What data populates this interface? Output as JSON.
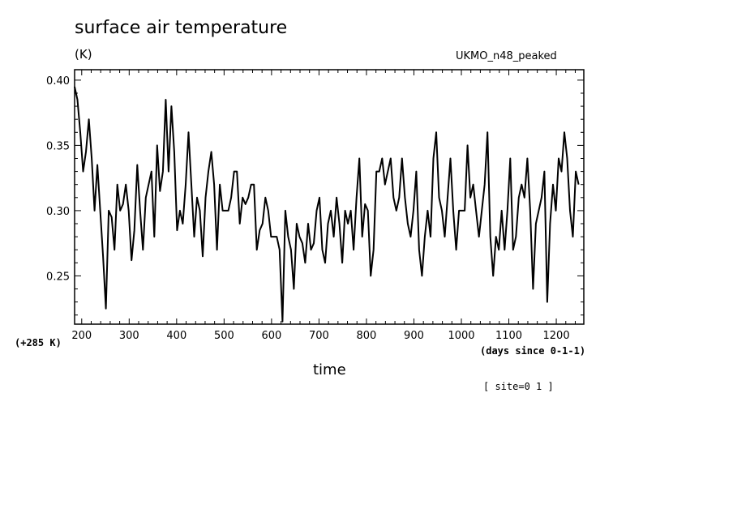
{
  "header": {
    "title": "surface air temperature",
    "units": "(K)",
    "model": "UKMO_n48_peaked"
  },
  "footer": {
    "offset_note": "(+285 K)",
    "x_units_note": "(days since 0-1-1)",
    "xlabel": "time",
    "site_note": "[ site=0 1 ]"
  },
  "chart_data": {
    "type": "line",
    "title": "surface air temperature",
    "ylabel": "(K)",
    "xlabel": "time",
    "xlim": [
      185,
      1258
    ],
    "ylim": [
      0.213,
      0.408
    ],
    "x_ticks": [
      200,
      300,
      400,
      500,
      600,
      700,
      800,
      900,
      1000,
      1100,
      1200
    ],
    "y_ticks": [
      0.25,
      0.3,
      0.35,
      0.4
    ],
    "y_tick_labels": [
      "0.25",
      "0.30",
      "0.35",
      "0.40"
    ],
    "grid": false,
    "series": [
      {
        "color": "#000000",
        "x_start": 185,
        "x_step": 6,
        "values": [
          0.395,
          0.385,
          0.36,
          0.33,
          0.345,
          0.37,
          0.34,
          0.3,
          0.335,
          0.3,
          0.265,
          0.225,
          0.3,
          0.295,
          0.27,
          0.32,
          0.3,
          0.305,
          0.32,
          0.3,
          0.262,
          0.285,
          0.335,
          0.3,
          0.27,
          0.31,
          0.32,
          0.33,
          0.28,
          0.35,
          0.315,
          0.33,
          0.385,
          0.33,
          0.38,
          0.345,
          0.285,
          0.3,
          0.29,
          0.32,
          0.36,
          0.32,
          0.28,
          0.31,
          0.3,
          0.265,
          0.31,
          0.33,
          0.345,
          0.32,
          0.27,
          0.32,
          0.3,
          0.3,
          0.3,
          0.31,
          0.33,
          0.33,
          0.29,
          0.31,
          0.305,
          0.31,
          0.32,
          0.32,
          0.27,
          0.285,
          0.29,
          0.31,
          0.3,
          0.28,
          0.28,
          0.28,
          0.27,
          0.215,
          0.3,
          0.28,
          0.27,
          0.24,
          0.29,
          0.28,
          0.275,
          0.26,
          0.29,
          0.27,
          0.275,
          0.3,
          0.31,
          0.27,
          0.26,
          0.29,
          0.3,
          0.28,
          0.31,
          0.29,
          0.26,
          0.3,
          0.29,
          0.3,
          0.27,
          0.31,
          0.34,
          0.28,
          0.305,
          0.3,
          0.25,
          0.27,
          0.33,
          0.33,
          0.34,
          0.32,
          0.33,
          0.34,
          0.31,
          0.3,
          0.31,
          0.34,
          0.31,
          0.29,
          0.28,
          0.3,
          0.33,
          0.27,
          0.25,
          0.28,
          0.3,
          0.28,
          0.34,
          0.36,
          0.31,
          0.3,
          0.28,
          0.31,
          0.34,
          0.3,
          0.27,
          0.3,
          0.3,
          0.3,
          0.35,
          0.31,
          0.32,
          0.3,
          0.28,
          0.3,
          0.32,
          0.36,
          0.28,
          0.25,
          0.28,
          0.27,
          0.3,
          0.27,
          0.3,
          0.34,
          0.27,
          0.28,
          0.31,
          0.32,
          0.31,
          0.34,
          0.3,
          0.24,
          0.29,
          0.3,
          0.31,
          0.33,
          0.23,
          0.29,
          0.32,
          0.3,
          0.34,
          0.33,
          0.36,
          0.34,
          0.3,
          0.28,
          0.33,
          0.32
        ],
        "peaks_note": "values read approximately from plot"
      }
    ]
  }
}
